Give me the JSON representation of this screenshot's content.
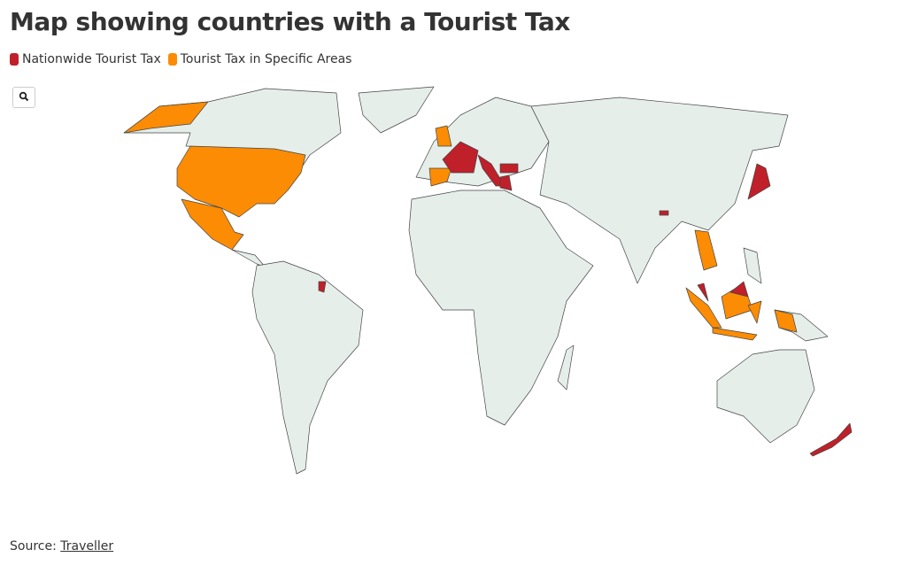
{
  "title": "Map showing countries with a Tourist Tax",
  "legend": [
    {
      "label": "Nationwide Tourist Tax",
      "color": "#c0202a"
    },
    {
      "label": "Tourist Tax in Specific Areas",
      "color": "#fb8c04"
    }
  ],
  "source": {
    "prefix": "Source:",
    "link": "Traveller"
  }
}
